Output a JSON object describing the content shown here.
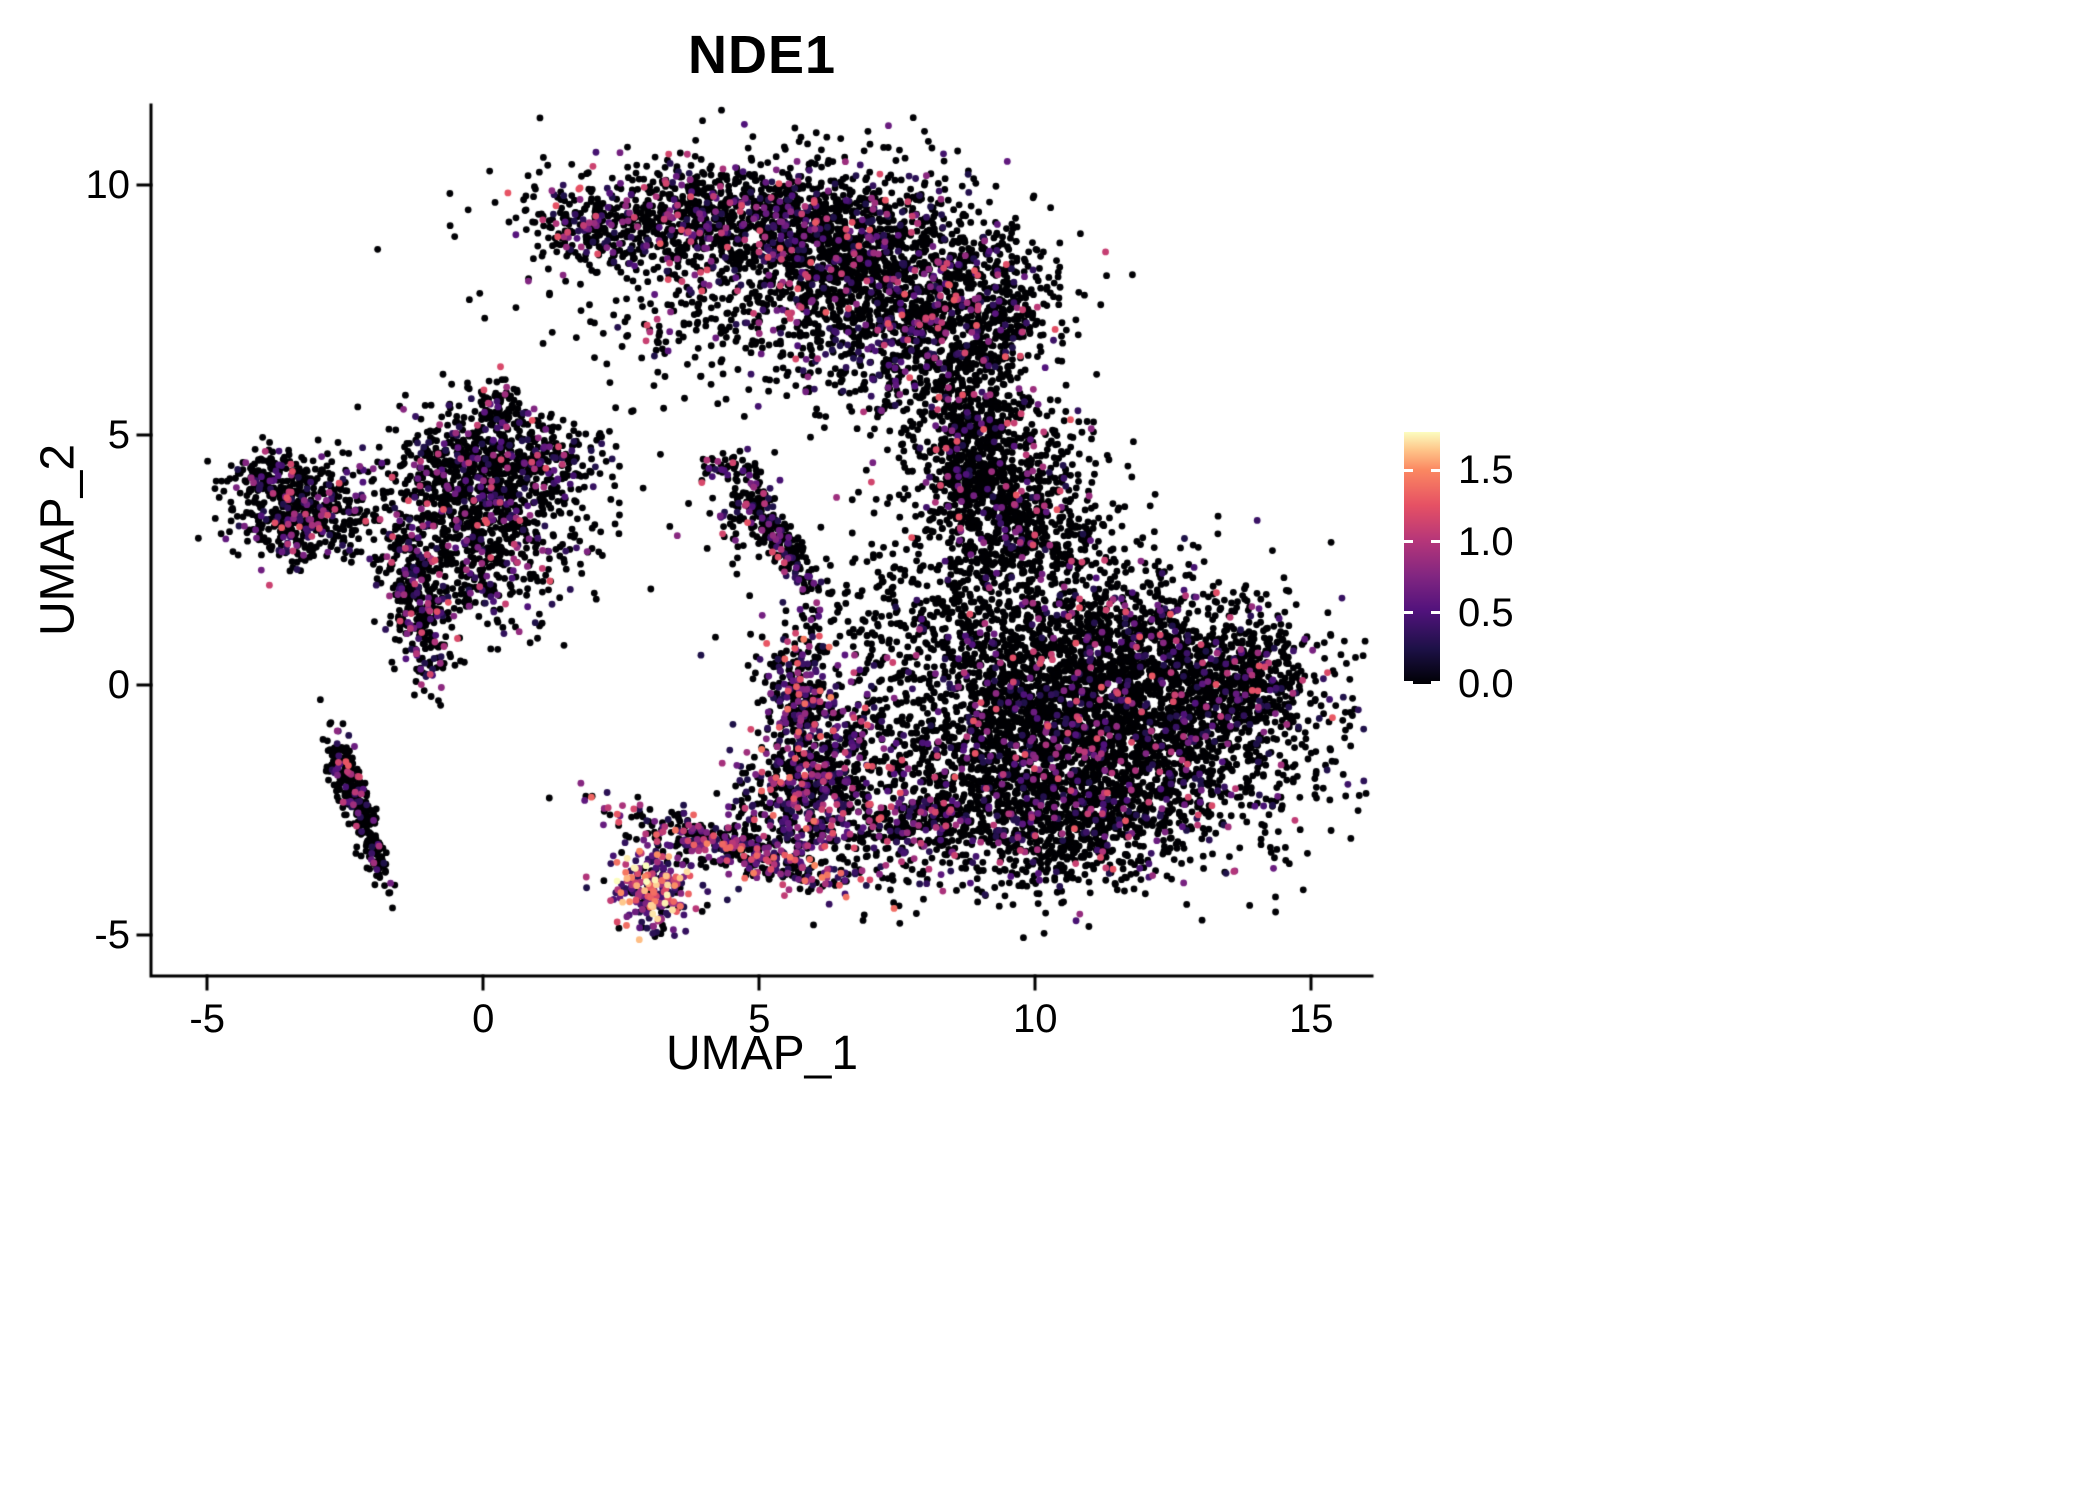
{
  "chart_data": {
    "type": "scatter",
    "title": "NDE1",
    "xlabel": "UMAP_1",
    "ylabel": "UMAP_2",
    "xlim": [
      -6,
      16.1
    ],
    "ylim": [
      -5.8,
      11.6
    ],
    "grid": false,
    "legend_position": "right",
    "point_radius_px": 3.4,
    "seed": 42,
    "x_ticks": [
      {
        "v": -5,
        "label": "-5"
      },
      {
        "v": 0,
        "label": "0"
      },
      {
        "v": 5,
        "label": "5"
      },
      {
        "v": 10,
        "label": "10"
      },
      {
        "v": 15,
        "label": "15"
      }
    ],
    "y_ticks": [
      {
        "v": 10,
        "label": "10"
      },
      {
        "v": 5,
        "label": "5"
      },
      {
        "v": 0,
        "label": "0"
      },
      {
        "v": -5,
        "label": "-5"
      }
    ],
    "colorbar": {
      "domain": [
        0,
        1.77
      ],
      "ticks": [
        {
          "v": 1.5,
          "label": "1.5"
        },
        {
          "v": 1.0,
          "label": "1.0"
        },
        {
          "v": 0.5,
          "label": "0.5"
        },
        {
          "v": 0.0,
          "label": "0.0"
        }
      ],
      "colormap_name": "magma",
      "colormap": [
        {
          "t": 0.0,
          "color": "#000004"
        },
        {
          "t": 0.14,
          "color": "#1d1147"
        },
        {
          "t": 0.29,
          "color": "#51127c"
        },
        {
          "t": 0.43,
          "color": "#822681"
        },
        {
          "t": 0.57,
          "color": "#b63679"
        },
        {
          "t": 0.71,
          "color": "#e65164"
        },
        {
          "t": 0.85,
          "color": "#fb8861"
        },
        {
          "t": 0.93,
          "color": "#fec68a"
        },
        {
          "t": 1.0,
          "color": "#fcfdbf"
        }
      ]
    },
    "expression_default": {
      "frac": 0.15,
      "vmin": 0.25,
      "vmax": 1.3
    },
    "clusters": [
      {
        "name": "top-left-tip",
        "cx": 2.2,
        "cy": 9.0,
        "sx": 0.7,
        "sy": 0.35,
        "rot": -15,
        "n": 200,
        "frac": 0.25
      },
      {
        "name": "top-band-left",
        "cx": 4.4,
        "cy": 9.35,
        "sx": 1.6,
        "sy": 0.5,
        "rot": -5,
        "n": 850,
        "frac": 0.22
      },
      {
        "name": "top-band-main",
        "cx": 6.7,
        "cy": 8.4,
        "sx": 1.4,
        "sy": 1.05,
        "rot": -25,
        "n": 1300,
        "frac": 0.2
      },
      {
        "name": "top-band-right",
        "cx": 8.2,
        "cy": 6.9,
        "sx": 0.95,
        "sy": 1.05,
        "rot": -15,
        "n": 650,
        "frac": 0.15
      },
      {
        "name": "top-sparse-fill",
        "cx": 5.3,
        "cy": 8.1,
        "sx": 2.3,
        "sy": 1.1,
        "rot": 0,
        "n": 300,
        "frac": 0.15
      },
      {
        "name": "top-right-appendage",
        "cx": 9.35,
        "cy": 7.6,
        "sx": 0.45,
        "sy": 0.9,
        "rot": 0,
        "n": 220,
        "frac": 0.12
      },
      {
        "name": "top-under-sparse",
        "cx": 4.3,
        "cy": 7.2,
        "sx": 1.2,
        "sy": 0.8,
        "rot": 0,
        "n": 120,
        "frac": 0.15
      },
      {
        "name": "right-column-upper",
        "cx": 8.9,
        "cy": 5.0,
        "sx": 0.5,
        "sy": 0.8,
        "rot": 0,
        "n": 280,
        "frac": 0.12
      },
      {
        "name": "right-column-mid",
        "cx": 9.5,
        "cy": 3.8,
        "sx": 0.75,
        "sy": 1.0,
        "rot": 0,
        "n": 550,
        "frac": 0.12
      },
      {
        "name": "right-column-lower",
        "cx": 10.1,
        "cy": 2.7,
        "sx": 0.95,
        "sy": 0.9,
        "rot": 0,
        "n": 320,
        "frac": 0.1
      },
      {
        "name": "right-column-left-edge",
        "cx": 8.8,
        "cy": 4.3,
        "sx": 0.35,
        "sy": 0.7,
        "rot": 0,
        "n": 180,
        "frac": 0.12
      },
      {
        "name": "right-main-core",
        "cx": 11.3,
        "cy": -1.1,
        "sx": 1.9,
        "sy": 1.25,
        "rot": 8,
        "n": 2700,
        "frac": 0.13
      },
      {
        "name": "right-main-upper",
        "cx": 11.6,
        "cy": 0.7,
        "sx": 1.5,
        "sy": 0.75,
        "rot": 0,
        "n": 850,
        "frac": 0.13
      },
      {
        "name": "right-main-tip",
        "cx": 13.9,
        "cy": 0.1,
        "sx": 0.55,
        "sy": 0.45,
        "rot": 0,
        "n": 220,
        "frac": 0.1
      },
      {
        "name": "right-main-bottom",
        "cx": 10.4,
        "cy": -2.9,
        "sx": 1.3,
        "sy": 0.55,
        "rot": 10,
        "n": 500,
        "frac": 0.15
      },
      {
        "name": "right-main-left-edge",
        "cx": 9.5,
        "cy": -0.4,
        "sx": 0.65,
        "sy": 1.1,
        "rot": 0,
        "n": 380,
        "frac": 0.12
      },
      {
        "name": "right-main-halo",
        "cx": 11.0,
        "cy": -0.5,
        "sx": 2.4,
        "sy": 1.8,
        "rot": 0,
        "n": 280,
        "frac": 0.1
      },
      {
        "name": "left-main",
        "cx": -0.35,
        "cy": 2.9,
        "sx": 0.85,
        "sy": 0.95,
        "rot": 0,
        "n": 650,
        "frac": 0.2
      },
      {
        "name": "left-upper",
        "cx": -0.15,
        "cy": 4.5,
        "sx": 0.75,
        "sy": 0.65,
        "rot": 0,
        "n": 350,
        "frac": 0.18
      },
      {
        "name": "left-lower-streak",
        "cx": -1.2,
        "cy": 1.5,
        "sx": 0.22,
        "sy": 0.8,
        "rot": 10,
        "n": 240,
        "frac": 0.25
      },
      {
        "name": "left-sparse",
        "cx": 0.4,
        "cy": 3.7,
        "sx": 1.1,
        "sy": 0.8,
        "rot": 0,
        "n": 280,
        "frac": 0.15
      },
      {
        "name": "left-arm-right",
        "cx": 1.1,
        "cy": 4.5,
        "sx": 0.5,
        "sy": 0.28,
        "rot": 0,
        "n": 130,
        "frac": 0.2
      },
      {
        "name": "left-top-dots",
        "cx": 0.3,
        "cy": 5.6,
        "sx": 0.3,
        "sy": 0.3,
        "rot": 0,
        "n": 60,
        "frac": 0.15
      },
      {
        "name": "far-left",
        "cx": -3.25,
        "cy": 3.5,
        "sx": 0.6,
        "sy": 0.55,
        "rot": 0,
        "n": 480,
        "frac": 0.22
      },
      {
        "name": "far-left-arm",
        "cx": -4.05,
        "cy": 4.2,
        "sx": 0.3,
        "sy": 0.25,
        "rot": 0,
        "n": 90,
        "frac": 0.2
      },
      {
        "name": "lower-left-streak",
        "cx": -2.2,
        "cy": -2.6,
        "sx": 0.85,
        "sy": 0.12,
        "rot": -72,
        "n": 260,
        "frac": 0.18
      },
      {
        "name": "lower-left-streak-head",
        "cx": -2.55,
        "cy": -1.6,
        "sx": 0.16,
        "sy": 0.2,
        "rot": 0,
        "n": 60,
        "frac": 0.2
      },
      {
        "name": "center-small",
        "cx": 4.75,
        "cy": 3.6,
        "sx": 0.3,
        "sy": 0.45,
        "rot": 0,
        "n": 100,
        "frac": 0.2
      },
      {
        "name": "center-streak",
        "cx": 5.45,
        "cy": 2.8,
        "sx": 0.65,
        "sy": 0.16,
        "rot": -60,
        "n": 170,
        "frac": 0.3
      },
      {
        "name": "center-dot",
        "cx": 4.35,
        "cy": 4.35,
        "sx": 0.25,
        "sy": 0.15,
        "rot": 0,
        "n": 40,
        "frac": 0.2
      },
      {
        "name": "bottom-hotspot",
        "cx": 3.1,
        "cy": -4.05,
        "sx": 0.38,
        "sy": 0.42,
        "rot": 0,
        "n": 280,
        "frac": 0.75,
        "vmax": 1.8
      },
      {
        "name": "bottom-stream",
        "cx": 4.6,
        "cy": -3.3,
        "sx": 1.2,
        "sy": 0.22,
        "rot": -18,
        "n": 420,
        "frac": 0.5,
        "vmax": 1.5
      },
      {
        "name": "bottom-mid-cluster",
        "cx": 5.7,
        "cy": -2.3,
        "sx": 0.55,
        "sy": 0.65,
        "rot": -20,
        "n": 380,
        "frac": 0.45,
        "vmax": 1.4
      },
      {
        "name": "mid-column",
        "cx": 5.75,
        "cy": -0.35,
        "sx": 0.35,
        "sy": 0.85,
        "rot": 0,
        "n": 320,
        "frac": 0.4,
        "vmax": 1.5
      },
      {
        "name": "mid-sparse",
        "cx": 6.6,
        "cy": -1.4,
        "sx": 0.7,
        "sy": 0.75,
        "rot": 0,
        "n": 230,
        "frac": 0.25
      },
      {
        "name": "bottom-connector",
        "cx": 7.7,
        "cy": -2.7,
        "sx": 0.9,
        "sy": 0.45,
        "rot": 15,
        "n": 320,
        "frac": 0.3
      },
      {
        "name": "mid-upper-sparse",
        "cx": 7.0,
        "cy": 0.9,
        "sx": 1.0,
        "sy": 1.1,
        "rot": 0,
        "n": 200,
        "frac": 0.15
      },
      {
        "name": "mid-right-sparse",
        "cx": 8.3,
        "cy": 1.8,
        "sx": 0.8,
        "sy": 0.9,
        "rot": 0,
        "n": 170,
        "frac": 0.12
      }
    ],
    "colors": {
      "background": "#ffffff",
      "axis": "#000000",
      "text": "#000000",
      "zero_expression_point": "#000004"
    }
  }
}
